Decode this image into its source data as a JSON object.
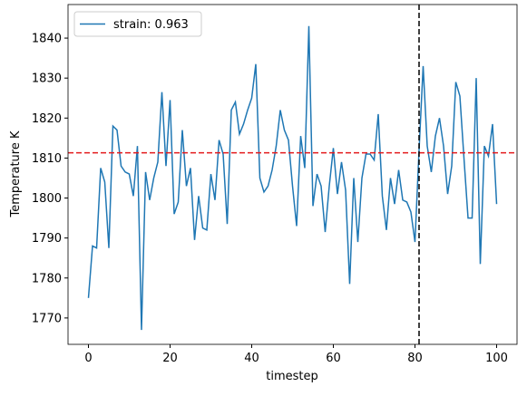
{
  "chart_data": {
    "type": "line",
    "x_label": "timestep",
    "y_label": "Temperature K",
    "x": [
      0,
      1,
      2,
      3,
      4,
      5,
      6,
      7,
      8,
      9,
      10,
      11,
      12,
      13,
      14,
      15,
      16,
      17,
      18,
      19,
      20,
      21,
      22,
      23,
      24,
      25,
      26,
      27,
      28,
      29,
      30,
      31,
      32,
      33,
      34,
      35,
      36,
      37,
      38,
      39,
      40,
      41,
      42,
      43,
      44,
      45,
      46,
      47,
      48,
      49,
      50,
      51,
      52,
      53,
      54,
      55,
      56,
      57,
      58,
      59,
      60,
      61,
      62,
      63,
      64,
      65,
      66,
      67,
      68,
      69,
      70,
      71,
      72,
      73,
      74,
      75,
      76,
      77,
      78,
      79,
      80,
      81,
      82,
      83,
      84,
      85,
      86,
      87,
      88,
      89,
      90,
      91,
      92,
      93,
      94,
      95,
      96,
      97,
      98,
      99,
      100
    ],
    "series": [
      {
        "name": "strain: 0.963",
        "color": "#1f77b4",
        "values": [
          1775,
          1788,
          1787.5,
          1807.5,
          1804,
          1787.5,
          1818,
          1817,
          1808,
          1806.5,
          1806,
          1800.5,
          1813,
          1767,
          1806.5,
          1799.5,
          1805,
          1809,
          1826.5,
          1808,
          1824.5,
          1796,
          1799,
          1817,
          1803,
          1807.5,
          1789.5,
          1800.5,
          1792.5,
          1792,
          1806,
          1799.5,
          1814.5,
          1811,
          1793.5,
          1822,
          1824,
          1816,
          1818.5,
          1822,
          1825,
          1833.5,
          1805,
          1801.5,
          1803,
          1807,
          1813,
          1822,
          1817,
          1814.5,
          1803,
          1793,
          1815.5,
          1807.5,
          1843,
          1798,
          1806,
          1803,
          1791.5,
          1803,
          1812.5,
          1801,
          1809,
          1802,
          1778.5,
          1805,
          1789,
          1805,
          1811,
          1811,
          1809.5,
          1821,
          1800.5,
          1792,
          1805,
          1798.5,
          1807,
          1799.5,
          1799,
          1796.5,
          1789,
          1812,
          1833,
          1813,
          1806.5,
          1815.5,
          1820,
          1813,
          1801,
          1808,
          1829,
          1825.5,
          1810,
          1795,
          1795,
          1830,
          1783.5,
          1813,
          1810.5,
          1818.5,
          1798.5
        ]
      }
    ],
    "xlim": [
      -5,
      105
    ],
    "xticks": [
      0,
      20,
      40,
      60,
      80,
      100
    ],
    "ylim": [
      1763.4,
      1848.4
    ],
    "yticks": [
      1770,
      1780,
      1790,
      1800,
      1810,
      1820,
      1830,
      1840
    ],
    "hline": {
      "y": 1811.3,
      "color": "#e41a1c"
    },
    "vline": {
      "x": 81,
      "color": "#000000"
    },
    "legend": "upper left"
  }
}
